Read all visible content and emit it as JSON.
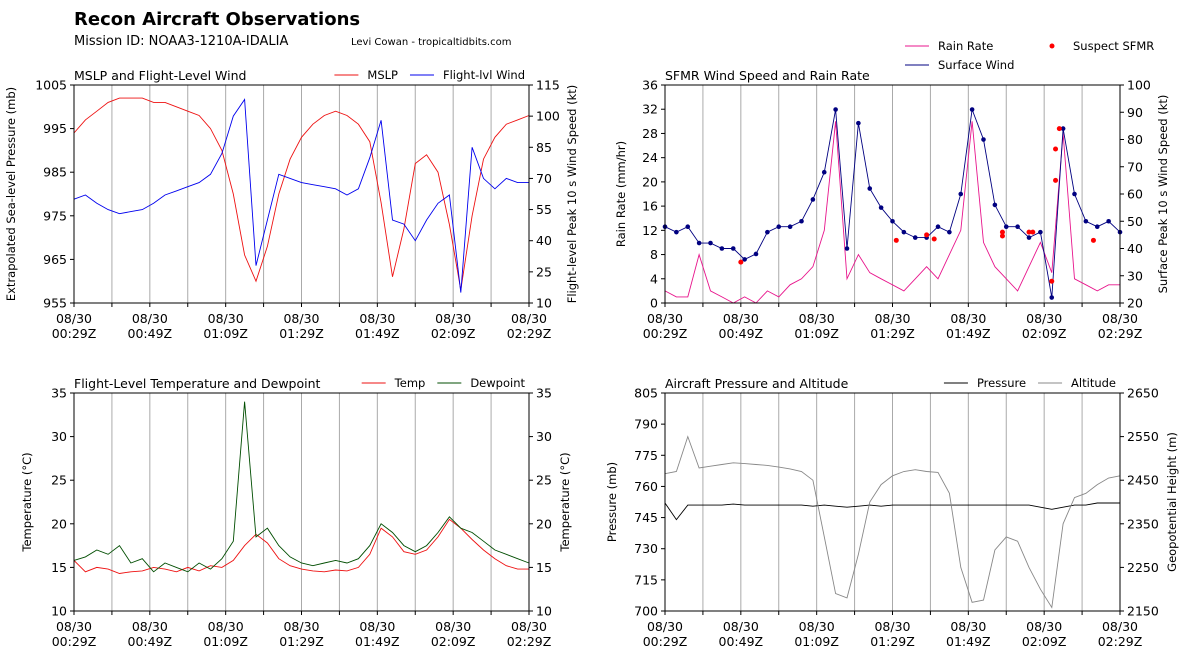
{
  "title": "Recon Aircraft Observations",
  "subtitle": "Mission ID: NOAA3-1210A-IDALIA",
  "credit": "Levi Cowan - tropicaltidbits.com",
  "chart_data": [
    {
      "type": "line",
      "title": "MSLP and Flight-Level Wind",
      "ylabel": "Extrapolated Sea-level Pressure (mb)",
      "y2label": "Flight-level Peak 10 s Wind Speed (kt)",
      "legend": "upper right",
      "x": [
        "00:29",
        "00:32",
        "00:35",
        "00:38",
        "00:41",
        "00:44",
        "00:47",
        "00:50",
        "00:53",
        "00:56",
        "00:59",
        "01:02",
        "01:05",
        "01:08",
        "01:11",
        "01:14",
        "01:17",
        "01:20",
        "01:23",
        "01:26",
        "01:29",
        "01:32",
        "01:35",
        "01:38",
        "01:41",
        "01:44",
        "01:47",
        "01:50",
        "01:53",
        "01:56",
        "01:59",
        "02:02",
        "02:05",
        "02:08",
        "02:11",
        "02:14",
        "02:17",
        "02:20",
        "02:23",
        "02:26",
        "02:29"
      ],
      "xlim": [
        "00:29",
        "02:29"
      ],
      "xticks": [
        {
          "value": "00:29",
          "label": "08/30\n00:29Z"
        },
        {
          "value": "00:39",
          "label": null
        },
        {
          "value": "00:49",
          "label": "08/30\n00:49Z"
        },
        {
          "value": "00:59",
          "label": null
        },
        {
          "value": "01:09",
          "label": "08/30\n01:09Z"
        },
        {
          "value": "01:19",
          "label": null
        },
        {
          "value": "01:29",
          "label": "08/30\n01:29Z"
        },
        {
          "value": "01:39",
          "label": null
        },
        {
          "value": "01:49",
          "label": "08/30\n01:49Z"
        },
        {
          "value": "01:59",
          "label": null
        },
        {
          "value": "02:09",
          "label": "08/30\n02:09Z"
        },
        {
          "value": "02:19",
          "label": null
        },
        {
          "value": "02:29",
          "label": "08/30\n02:29Z"
        }
      ],
      "ylim": [
        955,
        1005
      ],
      "yticks": [
        955,
        965,
        975,
        985,
        995,
        1005
      ],
      "y2lim": [
        10,
        115
      ],
      "y2ticks": [
        10,
        25,
        40,
        55,
        70,
        85,
        100,
        115
      ],
      "grid": "x",
      "series": [
        {
          "name": "MSLP",
          "color": "#ee1111",
          "values": [
            994,
            997,
            999,
            1001,
            1002,
            1002,
            1002,
            1001,
            1001,
            1000,
            999,
            998,
            995,
            990,
            980,
            966,
            960,
            968,
            980,
            988,
            993,
            996,
            998,
            999,
            998,
            996,
            992,
            978,
            961,
            972,
            987,
            989,
            985,
            973,
            958,
            975,
            988,
            993,
            996,
            997,
            998
          ]
        },
        {
          "name": "Flight-lvl Wind",
          "color": "#0000ee",
          "axis": "y2",
          "values": [
            60,
            62,
            58,
            55,
            53,
            54,
            55,
            58,
            62,
            64,
            66,
            68,
            72,
            82,
            100,
            108,
            28,
            50,
            72,
            70,
            68,
            67,
            66,
            65,
            62,
            65,
            80,
            98,
            50,
            48,
            40,
            50,
            58,
            62,
            15,
            85,
            70,
            65,
            70,
            68,
            68
          ]
        }
      ]
    },
    {
      "type": "line",
      "title": "SFMR Wind Speed and Rain Rate",
      "ylabel": "Rain Rate (mm/hr)",
      "y2label": "Surface Peak 10 s Wind Speed (kt)",
      "legend": "above",
      "x": [
        "00:29",
        "00:32",
        "00:35",
        "00:38",
        "00:41",
        "00:44",
        "00:47",
        "00:50",
        "00:53",
        "00:56",
        "00:59",
        "01:02",
        "01:05",
        "01:08",
        "01:11",
        "01:14",
        "01:17",
        "01:20",
        "01:23",
        "01:26",
        "01:29",
        "01:32",
        "01:35",
        "01:38",
        "01:41",
        "01:44",
        "01:47",
        "01:50",
        "01:53",
        "01:56",
        "01:59",
        "02:02",
        "02:05",
        "02:08",
        "02:11",
        "02:14",
        "02:17",
        "02:20",
        "02:23",
        "02:26",
        "02:29"
      ],
      "xlim": [
        "00:29",
        "02:29"
      ],
      "xticks": [
        {
          "value": "00:29",
          "label": "08/30\n00:29Z"
        },
        {
          "value": "00:39",
          "label": null
        },
        {
          "value": "00:49",
          "label": "08/30\n00:49Z"
        },
        {
          "value": "00:59",
          "label": null
        },
        {
          "value": "01:09",
          "label": "08/30\n01:09Z"
        },
        {
          "value": "01:19",
          "label": null
        },
        {
          "value": "01:29",
          "label": "08/30\n01:29Z"
        },
        {
          "value": "01:39",
          "label": null
        },
        {
          "value": "01:49",
          "label": "08/30\n01:49Z"
        },
        {
          "value": "01:59",
          "label": null
        },
        {
          "value": "02:09",
          "label": "08/30\n02:09Z"
        },
        {
          "value": "02:19",
          "label": null
        },
        {
          "value": "02:29",
          "label": "08/30\n02:29Z"
        }
      ],
      "ylim": [
        0,
        36
      ],
      "yticks": [
        0,
        4,
        8,
        12,
        16,
        20,
        24,
        28,
        32,
        36
      ],
      "y2lim": [
        20,
        100
      ],
      "y2ticks": [
        20,
        30,
        40,
        50,
        60,
        70,
        80,
        90,
        100
      ],
      "grid": "x",
      "series": [
        {
          "name": "Rain Rate",
          "color": "#e8158c",
          "values": [
            2,
            1,
            1,
            8,
            2,
            1,
            0,
            1,
            0,
            2,
            1,
            3,
            4,
            6,
            12,
            30,
            4,
            8,
            5,
            4,
            3,
            2,
            4,
            6,
            4,
            8,
            12,
            30,
            10,
            6,
            4,
            2,
            6,
            10,
            5,
            28,
            4,
            3,
            2,
            3,
            3
          ]
        },
        {
          "name": "Surface Wind",
          "color": "#000080",
          "axis": "y2",
          "marker": "o",
          "values": [
            48,
            46,
            48,
            42,
            42,
            40,
            40,
            36,
            38,
            46,
            48,
            48,
            50,
            58,
            68,
            91,
            40,
            86,
            62,
            55,
            50,
            46,
            44,
            44,
            48,
            46,
            60,
            91,
            80,
            56,
            48,
            48,
            44,
            46,
            22,
            84,
            60,
            50,
            48,
            50,
            46
          ]
        },
        {
          "name": "Suspect SFMR",
          "color": "#ff0000",
          "axis": "y2",
          "type": "scatter",
          "x": [
            "00:49",
            "01:30",
            "01:38",
            "01:40",
            "01:58",
            "01:58",
            "02:05",
            "02:06",
            "02:11",
            "02:12",
            "02:12",
            "02:13",
            "02:22"
          ],
          "values": [
            35,
            43,
            45,
            43.5,
            44.6,
            46,
            46,
            46,
            28,
            65,
            76.5,
            84,
            43
          ]
        }
      ]
    },
    {
      "type": "line",
      "title": "Flight-Level Temperature and Dewpoint",
      "ylabel": "Temperature (°C)",
      "y2label": "Temperature (°C)",
      "legend": "upper right",
      "x": [
        "00:29",
        "00:32",
        "00:35",
        "00:38",
        "00:41",
        "00:44",
        "00:47",
        "00:50",
        "00:53",
        "00:56",
        "00:59",
        "01:02",
        "01:05",
        "01:08",
        "01:11",
        "01:14",
        "01:17",
        "01:20",
        "01:23",
        "01:26",
        "01:29",
        "01:32",
        "01:35",
        "01:38",
        "01:41",
        "01:44",
        "01:47",
        "01:50",
        "01:53",
        "01:56",
        "01:59",
        "02:02",
        "02:05",
        "02:08",
        "02:11",
        "02:14",
        "02:17",
        "02:20",
        "02:23",
        "02:26",
        "02:29"
      ],
      "xlim": [
        "00:29",
        "02:29"
      ],
      "xticks": [
        {
          "value": "00:29",
          "label": "08/30\n00:29Z"
        },
        {
          "value": "00:39",
          "label": null
        },
        {
          "value": "00:49",
          "label": "08/30\n00:49Z"
        },
        {
          "value": "00:59",
          "label": null
        },
        {
          "value": "01:09",
          "label": "08/30\n01:09Z"
        },
        {
          "value": "01:19",
          "label": null
        },
        {
          "value": "01:29",
          "label": "08/30\n01:29Z"
        },
        {
          "value": "01:39",
          "label": null
        },
        {
          "value": "01:49",
          "label": "08/30\n01:49Z"
        },
        {
          "value": "01:59",
          "label": null
        },
        {
          "value": "02:09",
          "label": "08/30\n02:09Z"
        },
        {
          "value": "02:19",
          "label": null
        },
        {
          "value": "02:29",
          "label": "08/30\n02:29Z"
        }
      ],
      "ylim": [
        10,
        35
      ],
      "yticks": [
        10,
        15,
        20,
        25,
        30,
        35
      ],
      "y2lim": [
        10,
        35
      ],
      "y2ticks": [
        10,
        15,
        20,
        25,
        30,
        35
      ],
      "grid": "x",
      "series": [
        {
          "name": "Temp",
          "color": "#ee1111",
          "values": [
            15.8,
            14.5,
            15.0,
            14.8,
            14.3,
            14.5,
            14.6,
            15.0,
            14.8,
            14.5,
            15.0,
            14.6,
            15.2,
            15.0,
            15.8,
            17.5,
            18.8,
            17.8,
            16.0,
            15.2,
            14.8,
            14.6,
            14.5,
            14.7,
            14.6,
            15.0,
            16.5,
            19.5,
            18.5,
            16.8,
            16.5,
            17.0,
            18.5,
            20.5,
            19.5,
            18.2,
            17.0,
            16.0,
            15.2,
            14.8,
            14.8
          ]
        },
        {
          "name": "Dewpoint",
          "color": "#004d00",
          "values": [
            15.8,
            16.2,
            17.0,
            16.5,
            17.5,
            15.5,
            16.0,
            14.5,
            15.5,
            15.0,
            14.5,
            15.5,
            14.8,
            16.0,
            18.0,
            34.0,
            18.5,
            19.5,
            17.5,
            16.2,
            15.5,
            15.2,
            15.5,
            15.8,
            15.5,
            16.0,
            17.5,
            20.0,
            19.0,
            17.5,
            16.8,
            17.5,
            19.0,
            20.8,
            19.5,
            19.0,
            18.0,
            17.0,
            16.5,
            16.0,
            15.5
          ]
        }
      ]
    },
    {
      "type": "line",
      "title": "Aircraft Pressure and Altitude",
      "ylabel": "Pressure (mb)",
      "y2label": "Geopotential Height (m)",
      "legend": "upper right",
      "x": [
        "00:29",
        "00:32",
        "00:35",
        "00:38",
        "00:41",
        "00:44",
        "00:47",
        "00:50",
        "00:53",
        "00:56",
        "00:59",
        "01:02",
        "01:05",
        "01:08",
        "01:11",
        "01:14",
        "01:17",
        "01:20",
        "01:23",
        "01:26",
        "01:29",
        "01:32",
        "01:35",
        "01:38",
        "01:41",
        "01:44",
        "01:47",
        "01:50",
        "01:53",
        "01:56",
        "01:59",
        "02:02",
        "02:05",
        "02:08",
        "02:11",
        "02:14",
        "02:17",
        "02:20",
        "02:23",
        "02:26",
        "02:29"
      ],
      "xlim": [
        "00:29",
        "02:29"
      ],
      "xticks": [
        {
          "value": "00:29",
          "label": "08/30\n00:29Z"
        },
        {
          "value": "00:39",
          "label": null
        },
        {
          "value": "00:49",
          "label": "08/30\n00:49Z"
        },
        {
          "value": "00:59",
          "label": null
        },
        {
          "value": "01:09",
          "label": "08/30\n01:09Z"
        },
        {
          "value": "01:19",
          "label": null
        },
        {
          "value": "01:29",
          "label": "08/30\n01:29Z"
        },
        {
          "value": "01:39",
          "label": null
        },
        {
          "value": "01:49",
          "label": "08/30\n01:49Z"
        },
        {
          "value": "01:59",
          "label": null
        },
        {
          "value": "02:09",
          "label": "08/30\n02:09Z"
        },
        {
          "value": "02:19",
          "label": null
        },
        {
          "value": "02:29",
          "label": "08/30\n02:29Z"
        }
      ],
      "ylim": [
        700,
        805
      ],
      "yticks": [
        700,
        715,
        730,
        745,
        760,
        775,
        790,
        805
      ],
      "y2lim": [
        2150,
        2650
      ],
      "y2ticks": [
        2150,
        2250,
        2350,
        2450,
        2550,
        2650
      ],
      "grid": "x",
      "series": [
        {
          "name": "Pressure",
          "color": "#000000",
          "values": [
            752,
            744,
            751,
            751,
            751,
            751,
            751.5,
            751,
            751,
            751,
            751,
            751,
            751,
            750.5,
            751,
            750.5,
            750,
            750.5,
            751,
            750.5,
            751,
            751,
            751,
            751,
            751,
            751,
            751,
            751,
            751,
            751,
            751,
            751,
            751,
            750,
            749,
            750,
            751,
            751,
            752,
            752,
            752
          ]
        },
        {
          "name": "Altitude",
          "color": "#888888",
          "axis": "y2",
          "values": [
            2465,
            2470,
            2550,
            2478,
            2482,
            2486,
            2490,
            2488,
            2486,
            2484,
            2480,
            2476,
            2470,
            2450,
            2320,
            2190,
            2180,
            2280,
            2400,
            2440,
            2460,
            2470,
            2474,
            2470,
            2468,
            2420,
            2250,
            2170,
            2175,
            2290,
            2320,
            2310,
            2250,
            2200,
            2158,
            2350,
            2410,
            2420,
            2440,
            2455,
            2460
          ]
        }
      ]
    }
  ]
}
